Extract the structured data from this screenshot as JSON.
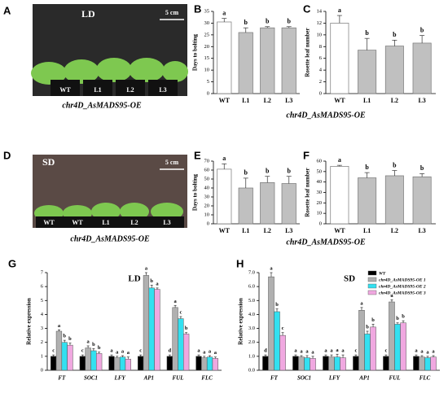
{
  "photos": [
    {
      "panel": "A",
      "label": "LD",
      "scale": "5 cm",
      "pots": [
        "WT",
        "L1",
        "L2",
        "L3"
      ],
      "caption": "chr4D_AsMADS95-OE"
    },
    {
      "panel": "D",
      "label": "SD",
      "scale": "5 cm",
      "pots": [
        "WT",
        "WT",
        "L1",
        "L2",
        "L3"
      ],
      "caption": "chr4D_AsMADS95-OE"
    }
  ],
  "chart_data": [
    {
      "type": "bar",
      "panel": "B",
      "ylabel": "Days to bolting",
      "xlabel": "chr4D_AsMADS95-OE",
      "categories": [
        "WT",
        "L1",
        "L2",
        "L3"
      ],
      "values": [
        30.5,
        26,
        28,
        28
      ],
      "errors": [
        1.5,
        2,
        0.5,
        0.5
      ],
      "letters": [
        "a",
        "b",
        "b",
        "b"
      ],
      "colors": [
        "#ffffff",
        "#c0c0c0",
        "#c0c0c0",
        "#c0c0c0"
      ],
      "ylim": [
        0,
        35
      ],
      "yticks": [
        0,
        5,
        10,
        15,
        20,
        25,
        30,
        35
      ]
    },
    {
      "type": "bar",
      "panel": "C",
      "ylabel": "Rosette leaf number",
      "categories": [
        "WT",
        "L1",
        "L2",
        "L3"
      ],
      "values": [
        12,
        7.4,
        8.1,
        8.6
      ],
      "errors": [
        1.3,
        2,
        1,
        1.3
      ],
      "letters": [
        "a",
        "b",
        "b",
        "b"
      ],
      "colors": [
        "#ffffff",
        "#c0c0c0",
        "#c0c0c0",
        "#c0c0c0"
      ],
      "ylim": [
        0,
        14
      ],
      "yticks": [
        0,
        2,
        4,
        6,
        8,
        10,
        12,
        14
      ]
    },
    {
      "type": "bar",
      "panel": "E",
      "ylabel": "Days to bolting",
      "xlabel": "chr4D_AsMADS95-OE",
      "categories": [
        "WT",
        "L1",
        "L2",
        "L3"
      ],
      "values": [
        61,
        40,
        46,
        45
      ],
      "errors": [
        6,
        11,
        7,
        8
      ],
      "letters": [
        "a",
        "b",
        "b",
        "b"
      ],
      "colors": [
        "#ffffff",
        "#c0c0c0",
        "#c0c0c0",
        "#c0c0c0"
      ],
      "ylim": [
        0,
        70
      ],
      "yticks": [
        0,
        10,
        20,
        30,
        40,
        50,
        60,
        70
      ]
    },
    {
      "type": "bar",
      "panel": "F",
      "ylabel": "Rosette leaf number",
      "categories": [
        "WT",
        "L1",
        "L2",
        "L3"
      ],
      "values": [
        55,
        44,
        46,
        45
      ],
      "errors": [
        1,
        5,
        5,
        3
      ],
      "letters": [
        "a",
        "b",
        "b",
        "b"
      ],
      "colors": [
        "#ffffff",
        "#c0c0c0",
        "#c0c0c0",
        "#c0c0c0"
      ],
      "ylim": [
        0,
        60
      ],
      "yticks": [
        0,
        10,
        20,
        30,
        40,
        50,
        60
      ]
    },
    {
      "type": "grouped_bar",
      "panel": "G",
      "title": "LD",
      "ylabel": "Relative expression",
      "categories": [
        "FT",
        "SOC1",
        "LFY",
        "AP1",
        "FUL",
        "FLC"
      ],
      "series": [
        {
          "color": "#000000",
          "values": [
            1,
            1,
            1,
            1,
            1,
            1
          ],
          "errors": [
            0.1,
            0.1,
            0.1,
            0.1,
            0.1,
            0.1
          ],
          "letters": [
            "c",
            "c",
            "a",
            "c",
            "d",
            "a"
          ]
        },
        {
          "color": "#b0b0b0",
          "values": [
            2.8,
            1.6,
            0.9,
            6.8,
            4.5,
            0.9
          ],
          "errors": [
            0.1,
            0.15,
            0.1,
            0.2,
            0.15,
            0.1
          ],
          "letters": [
            "a",
            "a",
            "a",
            "a",
            "a",
            "a"
          ]
        },
        {
          "color": "#33e0f0",
          "values": [
            2.0,
            1.4,
            0.95,
            5.9,
            3.7,
            0.95
          ],
          "errors": [
            0.15,
            0.15,
            0.1,
            0.2,
            0.15,
            0.1
          ],
          "letters": [
            "b",
            "b",
            "a",
            "b",
            "c",
            "a"
          ]
        },
        {
          "color": "#f0a8e0",
          "values": [
            1.8,
            1.2,
            0.8,
            5.8,
            2.6,
            0.85
          ],
          "errors": [
            0.15,
            0.1,
            0.15,
            0.1,
            0.1,
            0.1
          ],
          "letters": [
            "b",
            "b",
            "a",
            "a",
            "b",
            "a"
          ]
        }
      ],
      "ylim": [
        0,
        7
      ],
      "yticks": [
        0,
        1,
        2,
        3,
        4,
        5,
        6,
        7
      ]
    },
    {
      "type": "grouped_bar",
      "panel": "H",
      "title": "SD",
      "ylabel": "Relative expression",
      "legend": "upper right",
      "categories": [
        "FT",
        "SOC1",
        "LFY",
        "AP1",
        "FUL",
        "FLC"
      ],
      "series": [
        {
          "name": "WT",
          "color": "#000000",
          "values": [
            1,
            1,
            1,
            1,
            1,
            1
          ],
          "errors": [
            0.1,
            0.1,
            0.1,
            0.1,
            0.1,
            0.1
          ],
          "letters": [
            "d",
            "a",
            "a",
            "c",
            "c",
            "a"
          ]
        },
        {
          "name": "chr4D_AsMADS95-OE 1",
          "color": "#b0b0b0",
          "values": [
            6.7,
            0.95,
            0.95,
            4.3,
            4.9,
            0.95
          ],
          "errors": [
            0.3,
            0.1,
            0.15,
            0.2,
            0.15,
            0.1
          ],
          "letters": [
            "a",
            "a",
            "a",
            "a",
            "a",
            "a"
          ]
        },
        {
          "name": "chr4D_AsMADS95-OE 2",
          "color": "#33e0f0",
          "values": [
            4.2,
            0.9,
            0.95,
            2.6,
            3.3,
            0.9
          ],
          "errors": [
            0.2,
            0.15,
            0.2,
            0.2,
            0.1,
            0.1
          ],
          "letters": [
            "b",
            "a",
            "a",
            "b",
            "b",
            "a"
          ]
        },
        {
          "name": "chr4D_AsMADS95-OE 3",
          "color": "#f0a8e0",
          "values": [
            2.5,
            0.85,
            0.9,
            3.1,
            3.4,
            0.95
          ],
          "errors": [
            0.2,
            0.15,
            0.2,
            0.2,
            0.15,
            0.1
          ],
          "letters": [
            "c",
            "a",
            "a",
            "b",
            "b",
            "a"
          ]
        }
      ],
      "ylim": [
        0,
        7
      ],
      "yticks": [
        {
          "value": 0,
          "label": "0.0"
        },
        {
          "value": 1,
          "label": "1.0"
        },
        {
          "value": 2,
          "label": "2.0"
        },
        {
          "value": 3,
          "label": "3.0"
        },
        {
          "value": 4,
          "label": "4.0"
        },
        {
          "value": 5,
          "label": "5.0"
        },
        {
          "value": 6,
          "label": "6.0"
        },
        {
          "value": 7,
          "label": "7.0"
        }
      ]
    }
  ]
}
